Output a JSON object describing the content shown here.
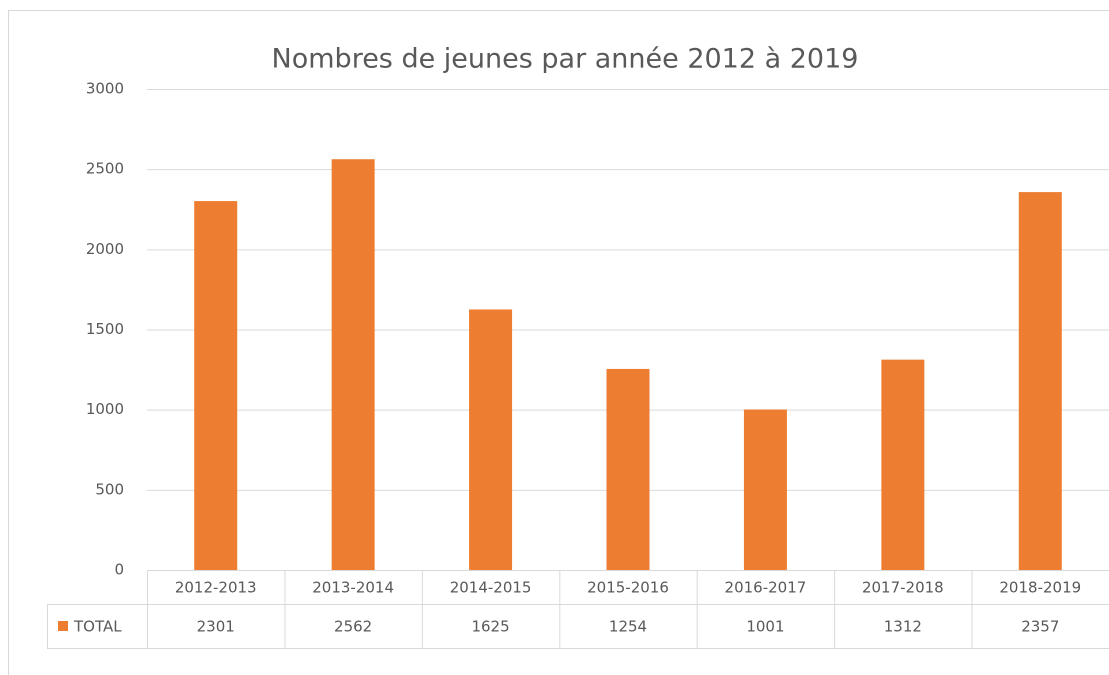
{
  "chart_data": {
    "type": "bar",
    "title": "Nombres de jeunes par année 2012 à 2019",
    "categories": [
      "2012-2013",
      "2013-2014",
      "2014-2015",
      "2015-2016",
      "2016-2017",
      "2017-2018",
      "2018-2019"
    ],
    "series": [
      {
        "name": "TOTAL",
        "color": "#ed7d31",
        "values": [
          2301,
          2562,
          1625,
          1254,
          1001,
          1312,
          2357
        ]
      }
    ],
    "ylim": [
      0,
      3000
    ],
    "yticks": [
      0,
      500,
      1000,
      1500,
      2000,
      2500,
      3000
    ],
    "grid": true,
    "data_table": true
  }
}
